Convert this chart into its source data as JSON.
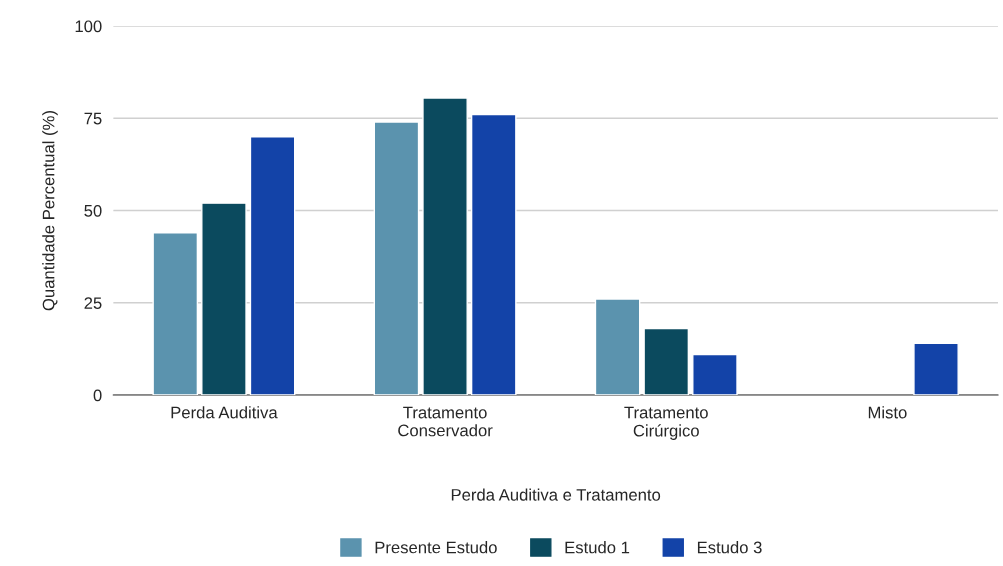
{
  "chart_data": {
    "type": "bar",
    "xlabel": "Perda Auditiva e Tratamento",
    "ylabel": "Quantidade Percentual (%)",
    "categories": [
      "Perda Auditiva",
      "Tratamento\nConservador",
      "Tratamento\nCirúrgico",
      "Misto"
    ],
    "series": [
      {
        "name": "Presente Estudo",
        "color": "#5b93ae",
        "values": [
          44,
          74,
          26,
          null
        ]
      },
      {
        "name": "Estudo 1",
        "color": "#0b4a5e",
        "values": [
          52,
          80.5,
          18,
          null
        ]
      },
      {
        "name": "Estudo 3",
        "color": "#1343a8",
        "values": [
          70,
          76,
          11,
          14
        ]
      }
    ],
    "ylim": [
      0,
      100
    ],
    "yticks": [
      0,
      25,
      50,
      75,
      100
    ],
    "grid": "y",
    "legend": "bottom"
  }
}
